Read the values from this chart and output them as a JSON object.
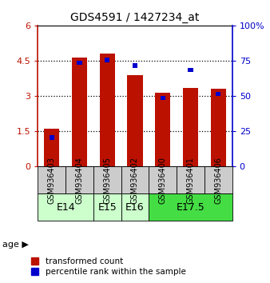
{
  "title": "GDS4591 / 1427234_at",
  "samples": [
    "GSM936403",
    "GSM936404",
    "GSM936405",
    "GSM936402",
    "GSM936400",
    "GSM936401",
    "GSM936406"
  ],
  "transformed_count": [
    1.62,
    4.65,
    4.82,
    3.9,
    3.15,
    3.35,
    3.3
  ],
  "percentile_rank": [
    22,
    75,
    77,
    73,
    50,
    70,
    53
  ],
  "left_ylim": [
    0,
    6
  ],
  "right_ylim": [
    0,
    100
  ],
  "left_yticks": [
    0,
    1.5,
    3,
    4.5,
    6
  ],
  "right_yticks": [
    0,
    25,
    50,
    75,
    100
  ],
  "left_yticklabels": [
    "0",
    "1.5",
    "3",
    "4.5",
    "6"
  ],
  "right_yticklabels": [
    "0",
    "25",
    "50",
    "75",
    "100%"
  ],
  "bar_color_red": "#bb1100",
  "bar_color_blue": "#0000cc",
  "red_bar_width": 0.55,
  "blue_bar_width": 0.18,
  "blue_bar_height": 0.18,
  "age_group_colors": {
    "E14": "#ccffcc",
    "E15": "#ccffcc",
    "E16": "#ccffcc",
    "E17.5": "#44dd44"
  },
  "age_groups": [
    {
      "label": "E14",
      "indices": [
        0,
        1
      ]
    },
    {
      "label": "E15",
      "indices": [
        2
      ]
    },
    {
      "label": "E16",
      "indices": [
        3
      ]
    },
    {
      "label": "E17.5",
      "indices": [
        4,
        5,
        6
      ]
    }
  ],
  "sample_box_color": "#cccccc",
  "grid_linestyle": "dotted",
  "grid_color": "black",
  "grid_linewidth": 0.9,
  "legend_red_label": "transformed count",
  "legend_blue_label": "percentile rank within the sample",
  "title_fontsize": 10,
  "tick_fontsize": 8,
  "sample_fontsize": 7,
  "age_fontsize": 9,
  "legend_fontsize": 7.5
}
